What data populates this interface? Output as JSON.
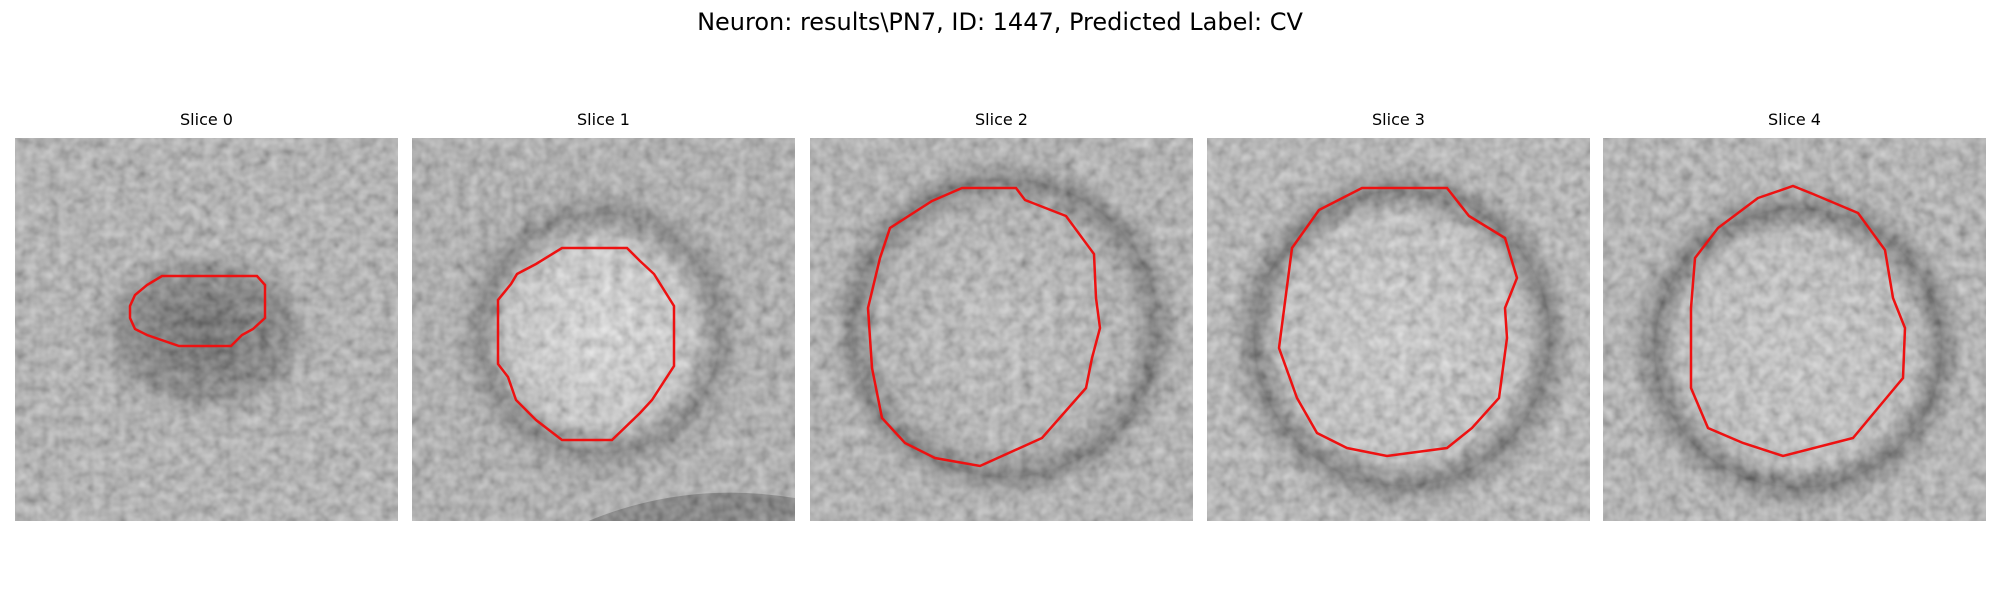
{
  "figure": {
    "title": "Neuron: results\\PN7, ID: 1447, Predicted Label: CV",
    "contour_color": "#ee1111"
  },
  "slices": [
    {
      "label": "Slice 0"
    },
    {
      "label": "Slice 1"
    },
    {
      "label": "Slice 2"
    },
    {
      "label": "Slice 3"
    },
    {
      "label": "Slice 4"
    }
  ]
}
